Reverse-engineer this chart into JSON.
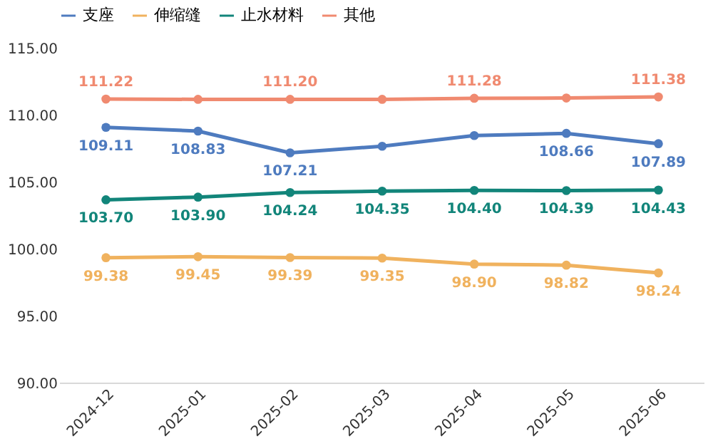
{
  "chart_data": {
    "type": "line",
    "categories": [
      "2024-12",
      "2025-01",
      "2025-02",
      "2025-03",
      "2025-04",
      "2025-05",
      "2025-06"
    ],
    "series": [
      {
        "name": "支座",
        "color": "#4e7bbf",
        "values": [
          109.11,
          108.83,
          107.21,
          107.7,
          108.5,
          108.66,
          107.89
        ],
        "value_labels": [
          "109.11",
          "108.83",
          "107.21",
          null,
          null,
          "108.66",
          "107.89"
        ]
      },
      {
        "name": "伸缩缝",
        "color": "#f0b25e",
        "values": [
          99.38,
          99.45,
          99.39,
          99.35,
          98.9,
          98.82,
          98.24
        ],
        "value_labels": [
          "99.38",
          "99.45",
          "99.39",
          "99.35",
          "98.90",
          "98.82",
          "98.24"
        ]
      },
      {
        "name": "止水材料",
        "color": "#12857a",
        "values": [
          103.7,
          103.9,
          104.24,
          104.35,
          104.4,
          104.39,
          104.43
        ],
        "value_labels": [
          "103.70",
          "103.90",
          "104.24",
          "104.35",
          "104.40",
          "104.39",
          "104.43"
        ]
      },
      {
        "name": "其他",
        "color": "#f08a70",
        "values": [
          111.22,
          111.2,
          111.2,
          111.2,
          111.28,
          111.3,
          111.38
        ],
        "value_labels": [
          "111.22",
          null,
          "111.20",
          null,
          "111.28",
          null,
          "111.38"
        ]
      }
    ],
    "ylim": [
      90,
      115
    ],
    "yticks": [
      {
        "value": 90,
        "label": "90.00"
      },
      {
        "value": 95,
        "label": "95.00"
      },
      {
        "value": 100,
        "label": "100.00"
      },
      {
        "value": 105,
        "label": "105.00"
      },
      {
        "value": 110,
        "label": "110.00"
      },
      {
        "value": 115,
        "label": "115.00"
      }
    ],
    "grid": false,
    "legend": "top",
    "marker": "circle",
    "line_style": "solid"
  }
}
